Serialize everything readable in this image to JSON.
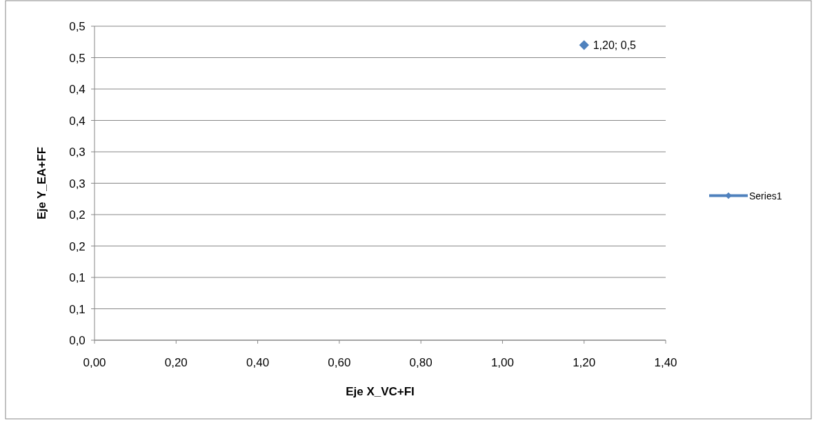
{
  "chart_data": {
    "type": "line",
    "xlabel": "Eje X_VC+FI",
    "ylabel": "Eje Y_EA+FF",
    "series": [
      {
        "name": "Series1",
        "color": "#4f81bd",
        "x": [
          1.2
        ],
        "values": [
          0.47
        ],
        "value_labels": [
          "1,20; 0,5"
        ]
      }
    ],
    "xlim": [
      0,
      1.4
    ],
    "xticks": [
      {
        "value": 0,
        "label": "0,00"
      },
      {
        "value": 0.2,
        "label": "0,20"
      },
      {
        "value": 0.4,
        "label": "0,40"
      },
      {
        "value": 0.6,
        "label": "0,60"
      },
      {
        "value": 0.8,
        "label": "0,80"
      },
      {
        "value": 1.0,
        "label": "1,00"
      },
      {
        "value": 1.2,
        "label": "1,20"
      },
      {
        "value": 1.4,
        "label": "1,40"
      }
    ],
    "ylim": [
      0,
      0.5
    ],
    "yticks": [
      {
        "value": 0,
        "label": "0,0"
      },
      {
        "value": 0.05,
        "label": "0,1"
      },
      {
        "value": 0.1,
        "label": "0,1"
      },
      {
        "value": 0.15,
        "label": "0,2"
      },
      {
        "value": 0.2,
        "label": "0,2"
      },
      {
        "value": 0.25,
        "label": "0,3"
      },
      {
        "value": 0.3,
        "label": "0,3"
      },
      {
        "value": 0.35,
        "label": "0,4"
      },
      {
        "value": 0.4,
        "label": "0,4"
      },
      {
        "value": 0.45,
        "label": "0,5"
      },
      {
        "value": 0.5,
        "label": "0,5"
      }
    ],
    "grid": "y",
    "legend": "right",
    "marker": "diamond",
    "line_style": "solid"
  }
}
